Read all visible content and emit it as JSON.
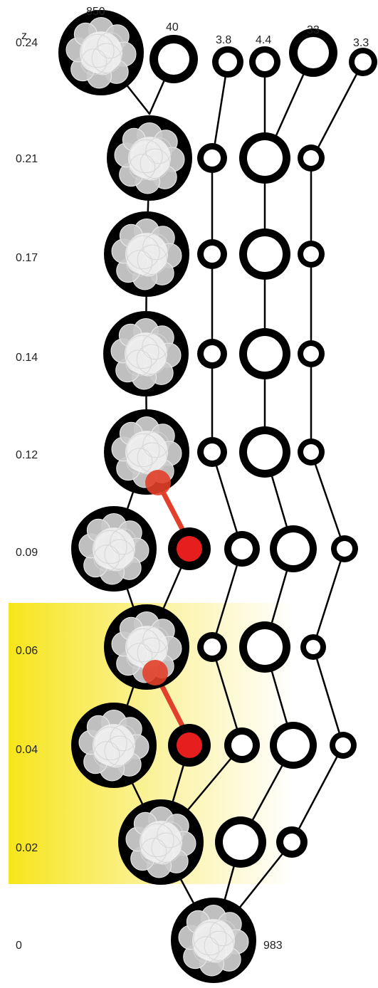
{
  "axis": {
    "title": "z",
    "rows": [
      "0.24",
      "0.21",
      "0.17",
      "0.14",
      "0.12",
      "0.09",
      "0.06",
      "0.04",
      "0.02",
      "0"
    ]
  },
  "top_labels": [
    "850",
    "40",
    "3.8",
    "4.4",
    "33",
    "3.3"
  ],
  "bottom_label": "983",
  "colors": {
    "highlight": "#f7e51b",
    "merger_line": "#e2402a",
    "merger_node": "#e61e1e",
    "ring": "#000000",
    "subhalo": "#c9c9c9"
  }
}
